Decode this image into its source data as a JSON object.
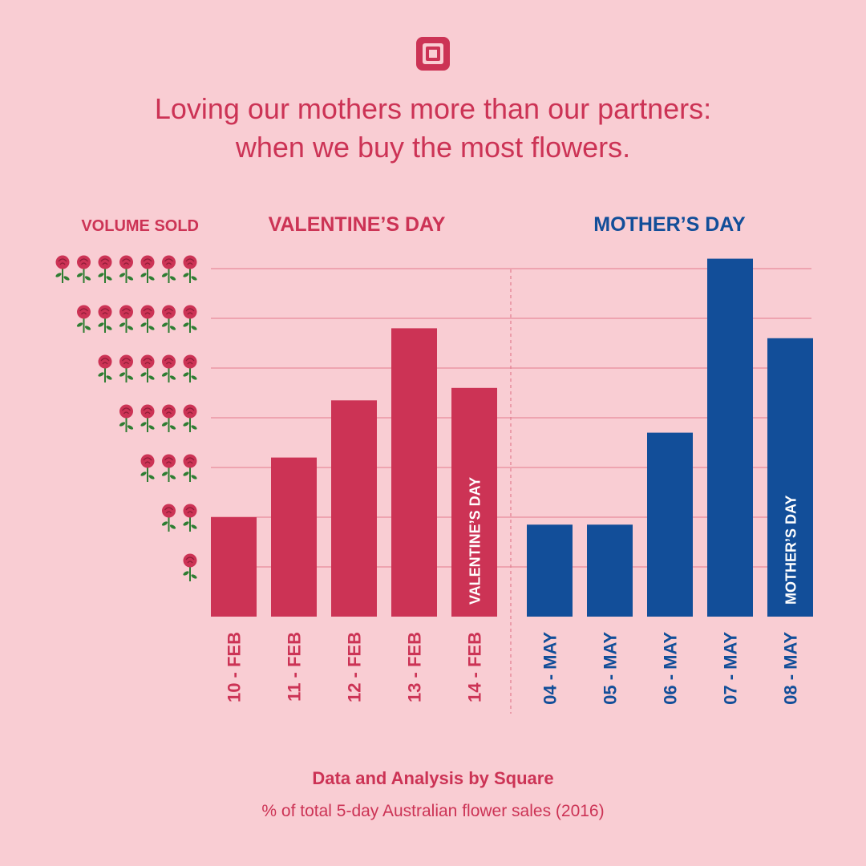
{
  "header": {
    "title_line1": "Loving our mothers more than our partners:",
    "title_line2": "when we buy the most flowers."
  },
  "colors": {
    "background": "#f9cdd3",
    "valentines": "#cc3355",
    "mothers": "#124e99",
    "gridline": "#e27c8e",
    "stem": "#2e7d32"
  },
  "icons": {
    "logo": "square-logo-icon",
    "scale": "rose-icon"
  },
  "chart_data": {
    "type": "bar",
    "ylabel": "VOLUME SOLD",
    "ylim": [
      0,
      7
    ],
    "y_ticks": [
      1,
      2,
      3,
      4,
      5,
      6,
      7
    ],
    "grid": true,
    "groups": [
      {
        "name": "VALENTINE’S DAY",
        "color": "#cc3355",
        "categories": [
          "10 - FEB",
          "11 - FEB",
          "12 - FEB",
          "13 - FEB",
          "14 - FEB"
        ],
        "values": [
          2.0,
          3.2,
          4.35,
          5.8,
          4.6
        ],
        "highlight_index": 4,
        "highlight_label": "VALENTINE’S DAY"
      },
      {
        "name": "MOTHER’S DAY",
        "color": "#124e99",
        "categories": [
          "04 - MAY",
          "05 - MAY",
          "06 - MAY",
          "07 - MAY",
          "08 - MAY"
        ],
        "values": [
          1.85,
          1.85,
          3.7,
          7.2,
          5.6
        ],
        "highlight_index": 4,
        "highlight_label": "MOTHER’S DAY"
      }
    ]
  },
  "footer": {
    "source": "Data and Analysis by Square",
    "note": "% of total 5-day Australian flower sales (2016)"
  }
}
